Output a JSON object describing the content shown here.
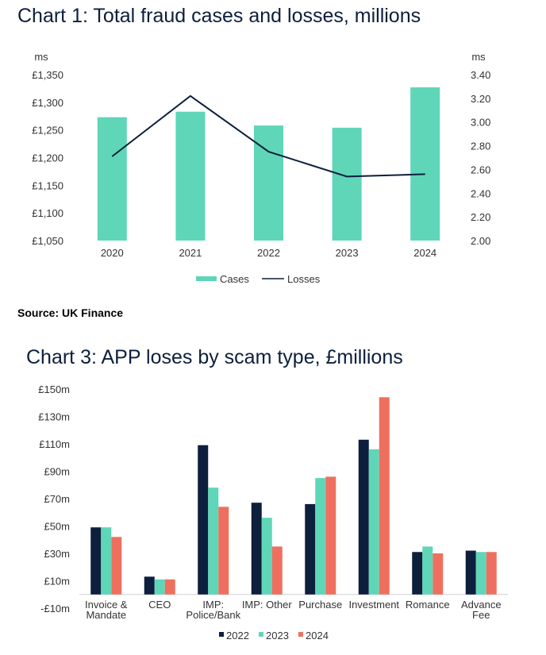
{
  "source": "Source: UK Finance",
  "chart_data": [
    {
      "type": "bar+line",
      "title": "Chart 1: Total fraud cases and losses, millions",
      "left_unit": "ms",
      "right_unit": "ms",
      "categories": [
        "2020",
        "2021",
        "2022",
        "2023",
        "2024"
      ],
      "ylim_left": [
        1050,
        1350
      ],
      "ylim_right": [
        2.0,
        3.4
      ],
      "yticks_left": [
        "£1,050",
        "£1,100",
        "£1,150",
        "£1,200",
        "£1,250",
        "£1,300",
        "£1,350"
      ],
      "yticks_right": [
        "2.00",
        "2.20",
        "2.40",
        "2.60",
        "2.80",
        "3.00",
        "3.20",
        "3.40"
      ],
      "series": [
        {
          "name": "Cases",
          "kind": "bar",
          "axis": "left",
          "values": [
            1273,
            1283,
            1258,
            1254,
            1327
          ],
          "color": "#5fd6b8"
        },
        {
          "name": "Losses",
          "kind": "line",
          "axis": "right",
          "values": [
            2.71,
            3.22,
            2.75,
            2.54,
            2.56
          ],
          "color": "#0d1f3c"
        }
      ],
      "legend": [
        "Cases",
        "Losses"
      ]
    },
    {
      "type": "bar",
      "title": "Chart 3: APP loses by scam type, £millions",
      "categories": [
        [
          "Invoice &",
          "Mandate"
        ],
        [
          "CEO"
        ],
        [
          "IMP:",
          "Police/Bank"
        ],
        [
          "IMP: Other"
        ],
        [
          "Purchase"
        ],
        [
          "Investment"
        ],
        [
          "Romance"
        ],
        [
          "Advance",
          "Fee"
        ]
      ],
      "ylim": [
        -10,
        150
      ],
      "yticks": [
        "-£10m",
        "£10m",
        "£30m",
        "£50m",
        "£70m",
        "£90m",
        "£110m",
        "£130m",
        "£150m"
      ],
      "series": [
        {
          "name": "2022",
          "values": [
            49,
            13,
            109,
            67,
            66,
            113,
            31,
            32
          ],
          "color": "#0d1f3c"
        },
        {
          "name": "2023",
          "values": [
            49,
            11,
            78,
            56,
            85,
            106,
            35,
            31
          ],
          "color": "#5fd6b8"
        },
        {
          "name": "2024",
          "values": [
            42,
            11,
            64,
            35,
            86,
            144,
            30,
            31
          ],
          "color": "#ef6f5e"
        }
      ]
    }
  ]
}
